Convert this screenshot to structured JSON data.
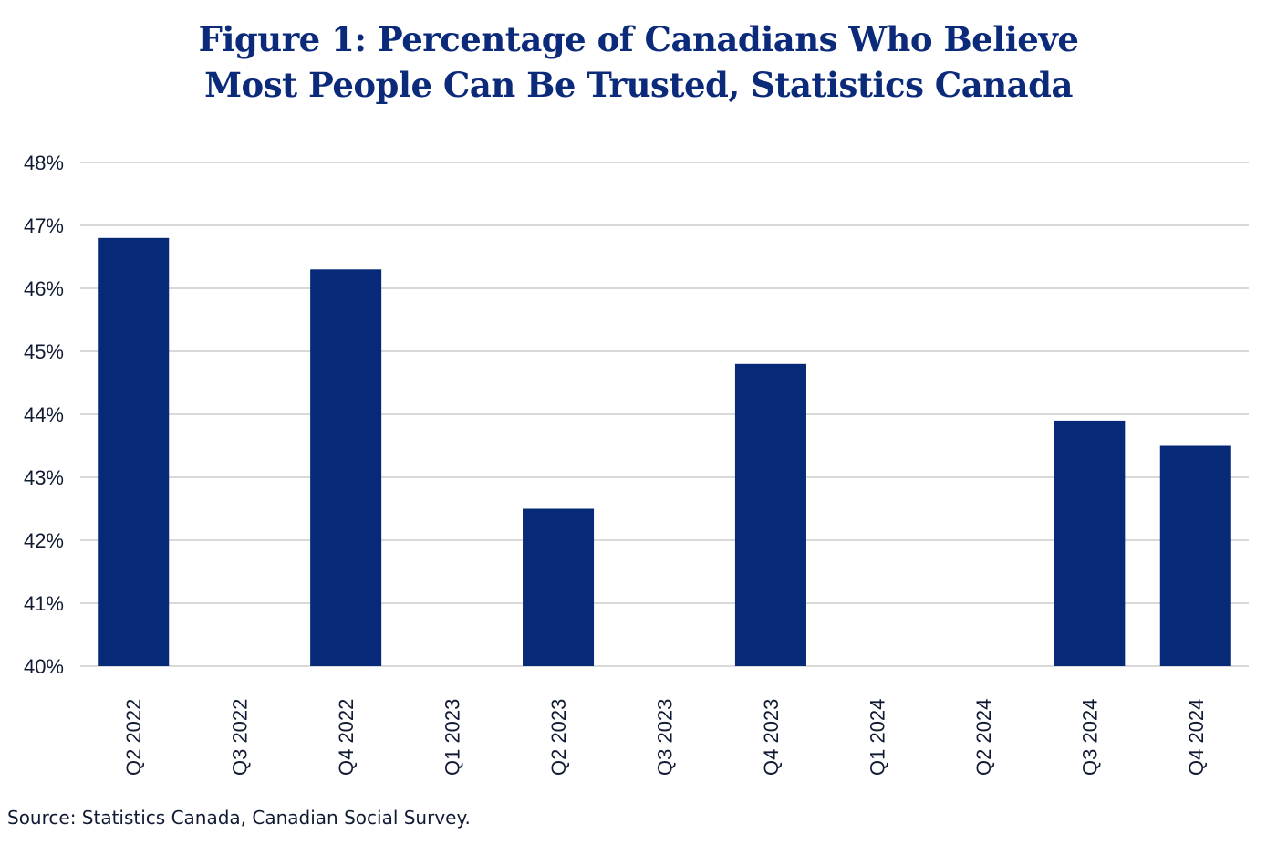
{
  "chart_data": {
    "type": "bar",
    "title_lines": [
      "Figure 1: Percentage of Canadians Who Believe",
      "Most People Can Be Trusted, Statistics Canada"
    ],
    "categories": [
      "Q2 2022",
      "Q3 2022",
      "Q4 2022",
      "Q1 2023",
      "Q2 2023",
      "Q3 2023",
      "Q4 2023",
      "Q1 2024",
      "Q2 2024",
      "Q3 2024",
      "Q4 2024"
    ],
    "values": [
      46.8,
      null,
      46.3,
      null,
      42.5,
      null,
      44.8,
      null,
      null,
      43.9,
      43.5
    ],
    "xlabel": "",
    "ylabel": "",
    "ylim": [
      40,
      48
    ],
    "yticks": [
      40,
      41,
      42,
      43,
      44,
      45,
      46,
      47,
      48
    ],
    "ytick_labels": [
      "40%",
      "41%",
      "42%",
      "43%",
      "44%",
      "45%",
      "46%",
      "47%",
      "48%"
    ],
    "grid": true,
    "legend": "none",
    "bar_color": "#062a78",
    "grid_color": "#d9d9d9",
    "source": "Source: Statistics Canada, Canadian Social Survey."
  }
}
